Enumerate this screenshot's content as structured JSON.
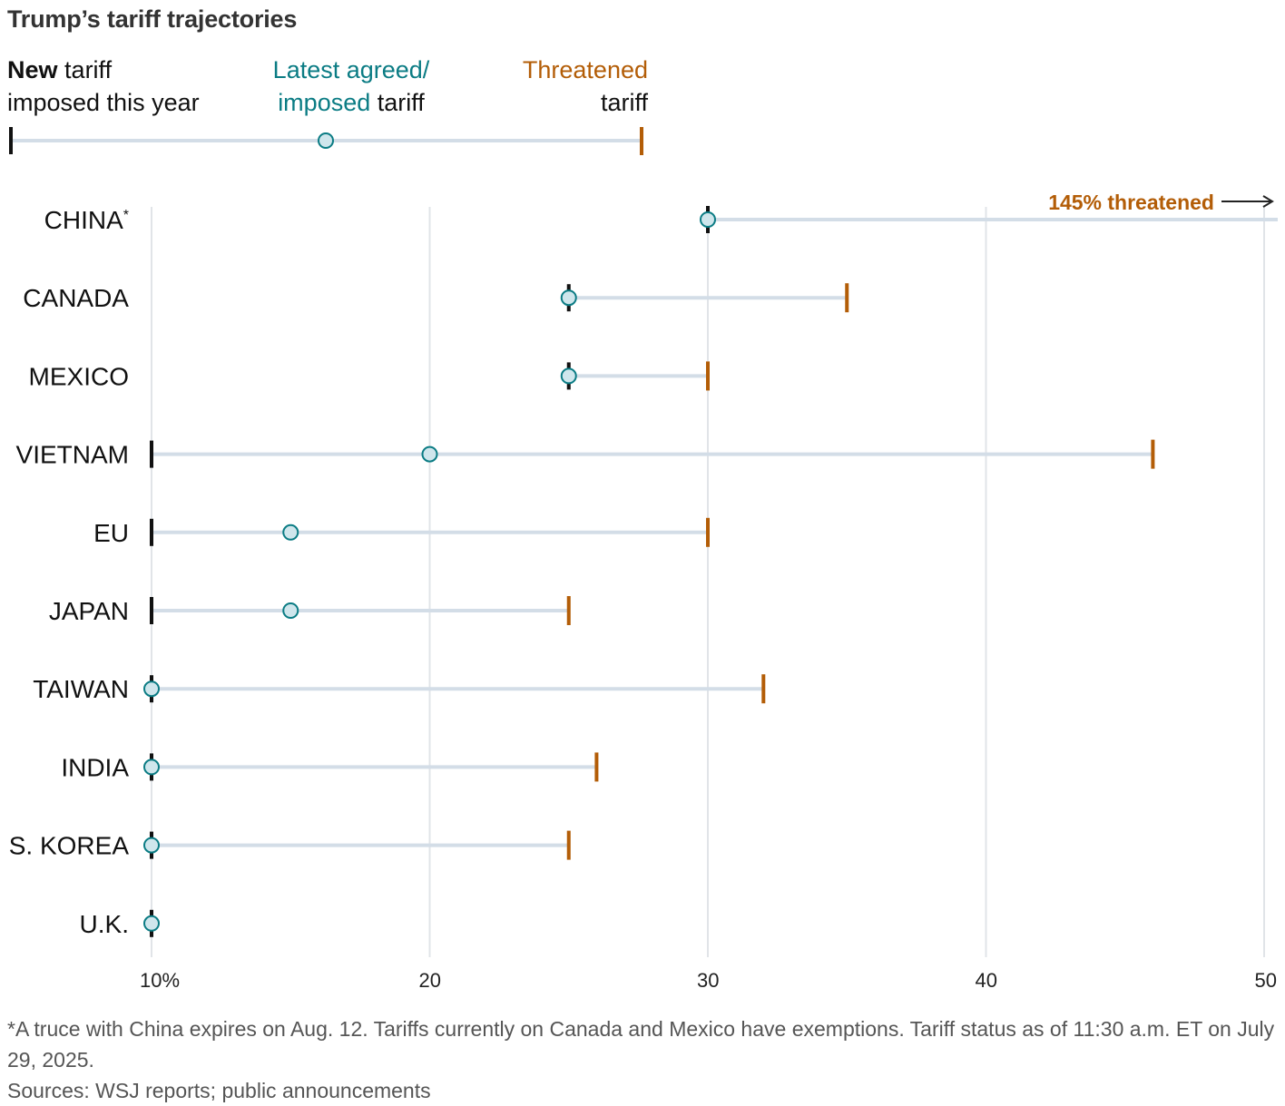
{
  "title": "Trump’s tariff trajectories",
  "legend": {
    "new_bold": "New",
    "new_rest_1": "tariff",
    "new_rest_2": "imposed this year",
    "latest_1": "Latest agreed/",
    "latest_2a": "imposed",
    "latest_2b": "tariff",
    "threat_1": "Threatened",
    "threat_2": "tariff"
  },
  "colors": {
    "new_tick": "#111111",
    "latest": "#0b7c84",
    "latest_fill": "#cfe6ec",
    "threatened": "#b35d07",
    "range_line": "#d3dde7",
    "grid": "#e1e4e8"
  },
  "chart_data": {
    "type": "dot-range",
    "title": "Trump’s tariff trajectories",
    "xlim": [
      10,
      50
    ],
    "ticks": [
      10,
      20,
      30,
      40,
      50
    ],
    "tick_labels": [
      "10%",
      "20",
      "30",
      "40",
      "50"
    ],
    "grid": true,
    "series_names": [
      "New tariff imposed this year",
      "Latest agreed/imposed tariff",
      "Threatened tariff"
    ],
    "countries": [
      {
        "label": "CHINA",
        "footnote_mark": "*",
        "new": 30,
        "latest": 30,
        "threatened": 145,
        "off_scale_label": "145% threatened"
      },
      {
        "label": "CANADA",
        "new": 25,
        "latest": 25,
        "threatened": 35
      },
      {
        "label": "MEXICO",
        "new": 25,
        "latest": 25,
        "threatened": 30
      },
      {
        "label": "VIETNAM",
        "new": 10,
        "latest": 20,
        "threatened": 46
      },
      {
        "label": "EU",
        "new": 10,
        "latest": 15,
        "threatened": 30
      },
      {
        "label": "JAPAN",
        "new": 10,
        "latest": 15,
        "threatened": 25
      },
      {
        "label": "TAIWAN",
        "new": 10,
        "latest": 10,
        "threatened": 32
      },
      {
        "label": "INDIA",
        "new": 10,
        "latest": 10,
        "threatened": 26
      },
      {
        "label": "S. KOREA",
        "new": 10,
        "latest": 10,
        "threatened": 25
      },
      {
        "label": "U.K.",
        "new": 10,
        "latest": 10,
        "threatened": null
      }
    ]
  },
  "notes": {
    "footnote": "*A truce with China expires on Aug. 12. Tariffs currently on Canada and Mexico have exemptions. Tariff status as of 11:30 a.m. ET on July 29, 2025.",
    "sources": "Sources: WSJ reports; public announcements"
  }
}
